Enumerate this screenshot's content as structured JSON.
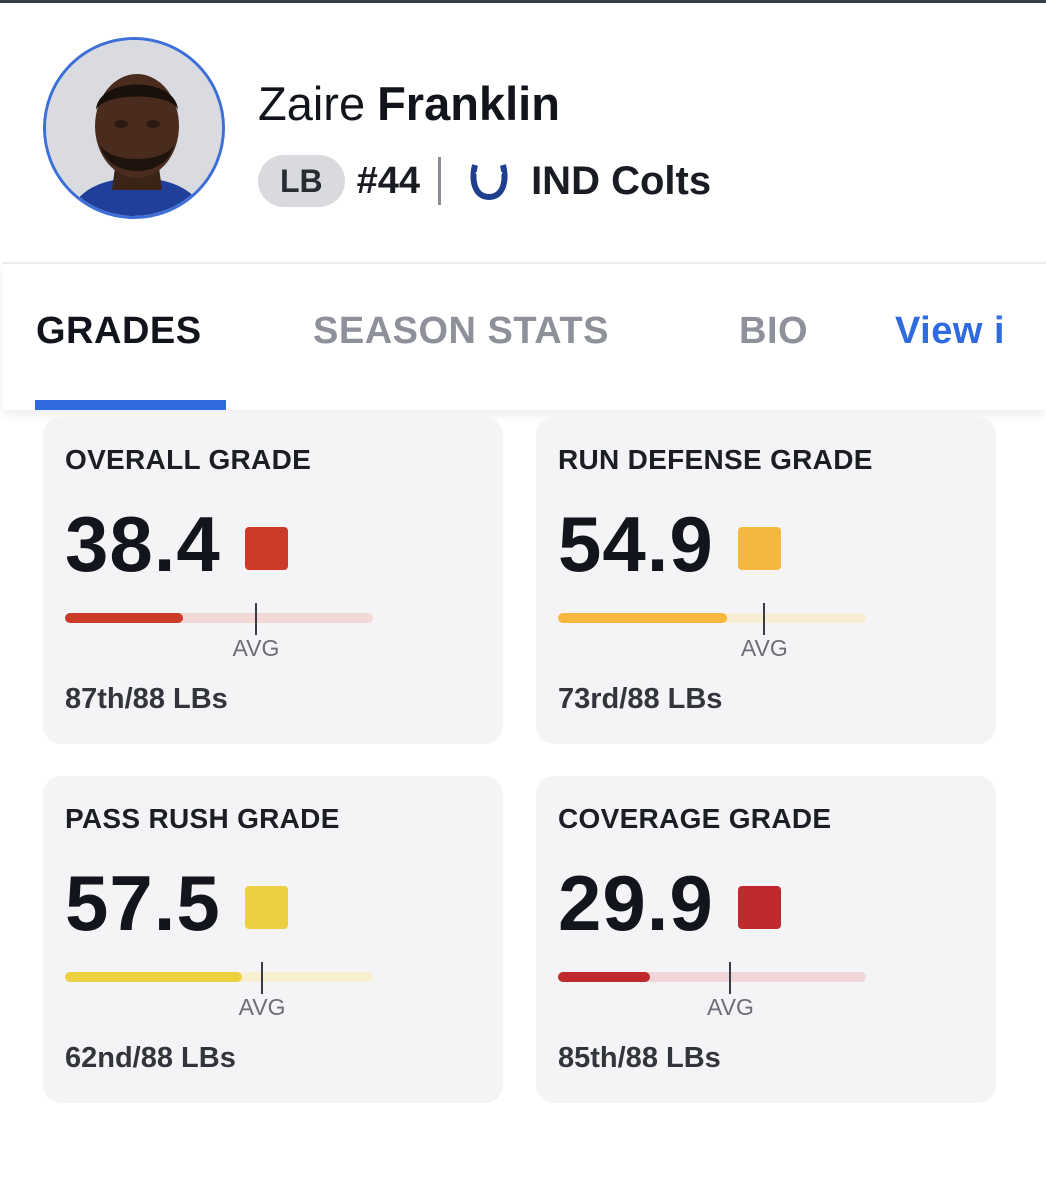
{
  "player": {
    "first_name": "Zaire",
    "last_name": "Franklin",
    "position": "LB",
    "jersey": "#44",
    "team": "IND Colts",
    "team_logo_icon": "horseshoe-icon",
    "avatar_icon": "player-headshot-icon"
  },
  "tabs": [
    {
      "label": "GRADES",
      "active": true
    },
    {
      "label": "SEASON STATS",
      "active": false
    },
    {
      "label": "BIO",
      "active": false
    },
    {
      "label": "View i",
      "active": false
    }
  ],
  "colors": {
    "accent_blue": "#2f6bde",
    "grade_red": "#cc3b2a",
    "grade_dark_red": "#bf2a2f",
    "grade_orange_yellow": "#f5b73d",
    "grade_yellow": "#ecd03f"
  },
  "grades": [
    {
      "title": "OVERALL GRADE",
      "value": "38.4",
      "color": "#cc3b2a",
      "track": "#f2d9d6",
      "fill": 0.384,
      "avg": 0.62,
      "avg_label": "AVG",
      "rank": "87th/88 LBs"
    },
    {
      "title": "RUN DEFENSE GRADE",
      "value": "54.9",
      "color": "#f5b73d",
      "track": "#f8ecd2",
      "fill": 0.549,
      "avg": 0.67,
      "avg_label": "AVG",
      "rank": "73rd/88 LBs"
    },
    {
      "title": "PASS RUSH GRADE",
      "value": "57.5",
      "color": "#ecd03f",
      "track": "#f7efcf",
      "fill": 0.575,
      "avg": 0.64,
      "avg_label": "AVG",
      "rank": "62nd/88 LBs"
    },
    {
      "title": "COVERAGE GRADE",
      "value": "29.9",
      "color": "#bf2a2f",
      "track": "#f0d6d8",
      "fill": 0.299,
      "avg": 0.56,
      "avg_label": "AVG",
      "rank": "85th/88 LBs"
    }
  ]
}
